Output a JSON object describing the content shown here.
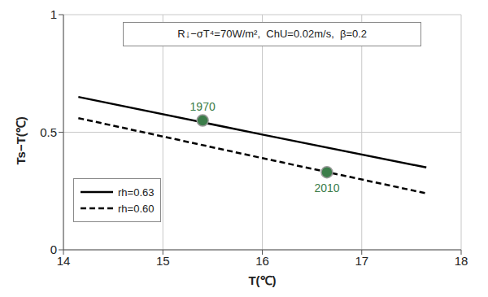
{
  "chart_data": {
    "type": "line",
    "x_label": "T(℃)",
    "y_label": "Ts−T(℃)",
    "annotation": "R↓−σT⁴=70W/m²,  ChU=0.02m/s,  β=0.2",
    "x": [
      14.15,
      16,
      17.65
    ],
    "series": [
      {
        "name": "rh=0.63",
        "color": "#000000",
        "line_style": "solid",
        "values": [
          0.65,
          0.49,
          0.35
        ]
      },
      {
        "name": "rh=0.60",
        "color": "#000000",
        "line_style": "dashed",
        "values": [
          0.56,
          0.39,
          0.24
        ]
      }
    ],
    "points": [
      {
        "label": "1970",
        "x": 15.4,
        "y": 0.55,
        "color": "#3c7d4a"
      },
      {
        "label": "2010",
        "x": 16.65,
        "y": 0.33,
        "color": "#3c7d4a"
      }
    ],
    "xlim": [
      14,
      18
    ],
    "xticks": [
      14,
      15,
      16,
      17,
      18
    ],
    "ylim": [
      0,
      1
    ],
    "yticks": [
      0,
      0.5,
      1
    ],
    "grid": true,
    "legend": "lower left"
  }
}
